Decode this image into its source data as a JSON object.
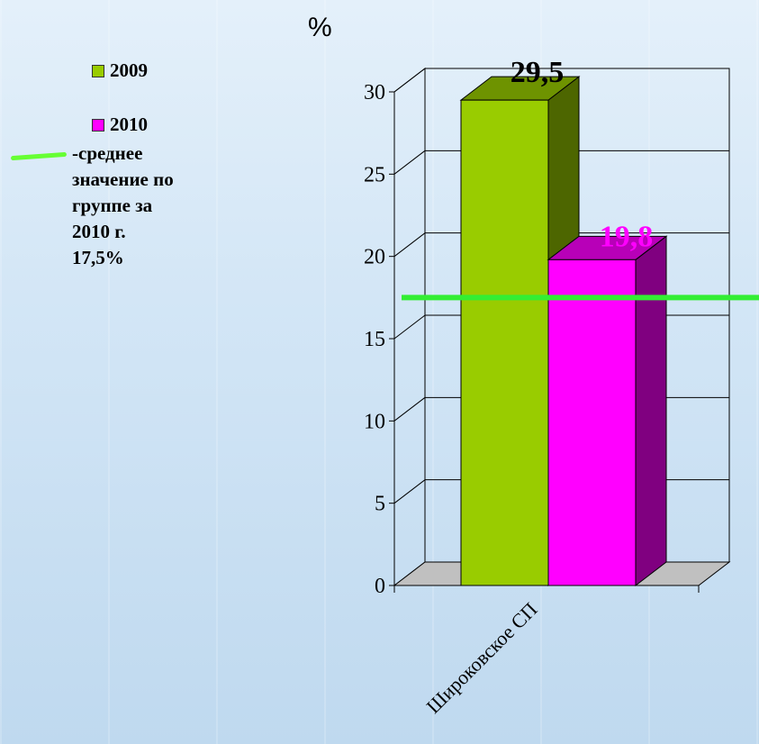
{
  "unit_label": "%",
  "legend": {
    "items": [
      {
        "label": "2009",
        "color": "#99cc00"
      },
      {
        "label": "2010",
        "color": "#ff00ff"
      }
    ],
    "avg_note_lines": [
      "-среднее",
      "значение по",
      "группе за",
      "2010 г.",
      "17,5%"
    ]
  },
  "chart_data": {
    "type": "bar",
    "style": "3d-clustered",
    "categories": [
      "Широковское СП"
    ],
    "series": [
      {
        "name": "2009",
        "values": [
          29.5
        ],
        "data_labels": [
          "29,5"
        ],
        "color": "#99cc00"
      },
      {
        "name": "2010",
        "values": [
          19.8
        ],
        "data_labels": [
          "19,8"
        ],
        "color": "#ff00ff"
      }
    ],
    "reference_line": {
      "value": 17.5,
      "color": "#33ee33"
    },
    "y_ticks": [
      "0",
      "5",
      "10",
      "15",
      "20",
      "25",
      "30"
    ],
    "ylim": [
      0,
      30
    ],
    "grid": true,
    "legend_position": "left"
  }
}
